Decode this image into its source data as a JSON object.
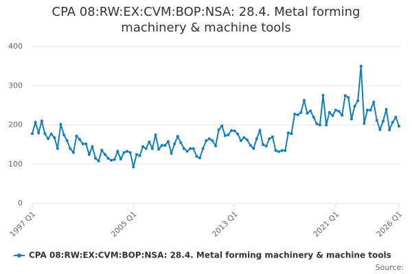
{
  "chart_data": {
    "type": "line",
    "title": "CPA 08:RW:EX:CVM:BOP:NSA: 28.4. Metal forming machinery & machine tools",
    "categories": [
      "1997 Q1",
      null,
      null,
      null,
      null,
      null,
      null,
      null,
      null,
      null,
      null,
      null,
      null,
      null,
      null,
      null,
      null,
      null,
      null,
      null,
      null,
      null,
      null,
      null,
      null,
      null,
      null,
      null,
      null,
      null,
      null,
      null,
      "2005 Q1",
      null,
      null,
      null,
      null,
      null,
      null,
      null,
      null,
      null,
      null,
      null,
      null,
      null,
      null,
      null,
      null,
      null,
      null,
      null,
      null,
      null,
      null,
      null,
      null,
      null,
      null,
      null,
      null,
      null,
      null,
      null,
      "2013 Q1",
      null,
      null,
      null,
      null,
      null,
      null,
      null,
      null,
      null,
      null,
      null,
      null,
      null,
      null,
      null,
      null,
      null,
      null,
      null,
      null,
      null,
      null,
      null,
      null,
      null,
      null,
      null,
      null,
      null,
      null,
      null,
      "2021 Q1",
      null,
      null,
      null,
      null,
      null,
      null,
      null,
      null,
      null,
      null,
      null,
      null,
      null,
      null,
      null,
      null,
      null,
      null,
      null,
      "2026 Q1"
    ],
    "series": [
      {
        "name": "CPA 08:RW:EX:CVM:BOP:NSA: 28.4. Metal forming machinery & machine tools",
        "color": "#0f7dbf",
        "values": [
          178,
          207,
          180,
          210,
          178,
          165,
          177,
          168,
          140,
          202,
          175,
          160,
          140,
          130,
          172,
          163,
          152,
          152,
          125,
          145,
          115,
          108,
          136,
          125,
          115,
          110,
          112,
          133,
          113,
          130,
          133,
          130,
          93,
          125,
          122,
          145,
          140,
          157,
          140,
          175,
          138,
          148,
          148,
          158,
          128,
          152,
          171,
          155,
          140,
          133,
          140,
          140,
          120,
          116,
          140,
          160,
          165,
          160,
          147,
          188,
          198,
          173,
          175,
          186,
          185,
          177,
          160,
          168,
          162,
          148,
          140,
          165,
          186,
          150,
          146,
          165,
          170,
          135,
          132,
          135,
          135,
          180,
          178,
          228,
          226,
          232,
          263,
          230,
          236,
          220,
          203,
          200,
          276,
          200,
          232,
          224,
          238,
          235,
          225,
          275,
          270,
          215,
          248,
          262,
          350,
          204,
          238,
          238,
          258,
          212,
          188,
          210,
          240,
          188,
          207,
          220,
          197
        ]
      }
    ],
    "ylim": [
      0,
      400
    ],
    "yticks": [
      0,
      100,
      200,
      300,
      400
    ],
    "grid": true,
    "source_label": "Source:"
  }
}
